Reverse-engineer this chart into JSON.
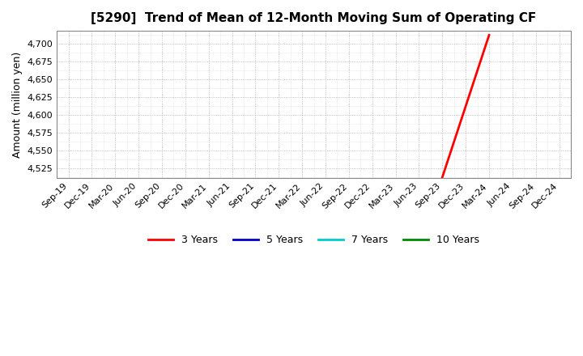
{
  "title": "[5290]  Trend of Mean of 12-Month Moving Sum of Operating CF",
  "ylabel": "Amount (million yen)",
  "background_color": "#ffffff",
  "plot_bg_color": "#ffffff",
  "grid_color": "#999999",
  "ylim": [
    4512,
    4718
  ],
  "yticks": [
    4525,
    4550,
    4575,
    4600,
    4625,
    4650,
    4675,
    4700
  ],
  "xtick_labels": [
    "Sep-19",
    "Dec-19",
    "Mar-20",
    "Jun-20",
    "Sep-20",
    "Dec-20",
    "Mar-21",
    "Jun-21",
    "Sep-21",
    "Dec-21",
    "Mar-22",
    "Jun-22",
    "Sep-22",
    "Dec-22",
    "Mar-23",
    "Jun-23",
    "Sep-23",
    "Dec-23",
    "Mar-24",
    "Jun-24",
    "Sep-24",
    "Dec-24"
  ],
  "line_3y": {
    "x_labels": [
      "Sep-23",
      "Mar-24"
    ],
    "y": [
      4513,
      4712
    ],
    "color": "#ff0000",
    "linewidth": 2.0,
    "label": "3 Years"
  },
  "line_5y": {
    "color": "#0000cc",
    "linewidth": 2.0,
    "label": "5 Years"
  },
  "line_7y": {
    "color": "#00cccc",
    "linewidth": 2.0,
    "label": "7 Years"
  },
  "line_10y": {
    "color": "#008800",
    "linewidth": 2.0,
    "label": "10 Years"
  },
  "legend_labels": [
    "3 Years",
    "5 Years",
    "7 Years",
    "10 Years"
  ],
  "legend_colors": [
    "#ff0000",
    "#0000cc",
    "#00cccc",
    "#008800"
  ],
  "title_fontsize": 11,
  "ylabel_fontsize": 9,
  "tick_fontsize": 8
}
